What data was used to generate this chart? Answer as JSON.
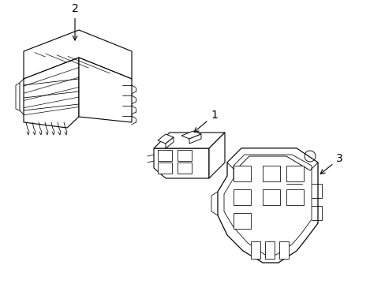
{
  "background_color": "#ffffff",
  "line_color": "#000000",
  "lw": 0.8,
  "figsize": [
    4.89,
    3.6
  ],
  "dpi": 100,
  "label1": "1",
  "label2": "2",
  "label3": "3"
}
